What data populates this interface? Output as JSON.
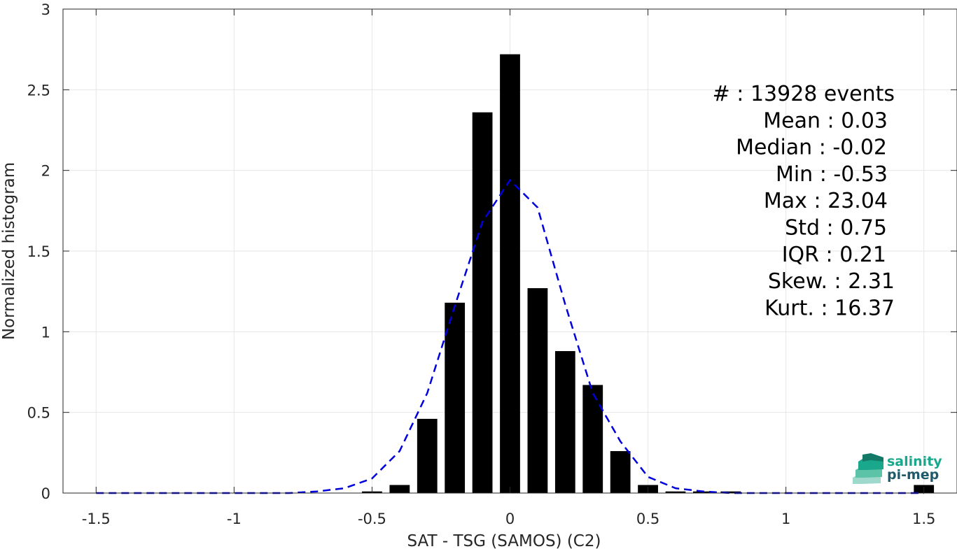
{
  "chart_data": {
    "type": "bar",
    "xlabel": "SAT - TSG (SAMOS) (C2)",
    "ylabel": "Normalized histogram",
    "xlim": [
      -1.62,
      1.62
    ],
    "ylim": [
      0,
      3
    ],
    "xticks": [
      -1.5,
      -1,
      -0.5,
      0,
      0.5,
      1,
      1.5
    ],
    "xtick_labels": [
      "-1.5",
      "-1",
      "-0.5",
      "0",
      "0.5",
      "1",
      "1.5"
    ],
    "yticks": [
      0,
      0.5,
      1,
      1.5,
      2,
      2.5,
      3
    ],
    "ytick_labels": [
      "0",
      "0.5",
      "1",
      "1.5",
      "2",
      "2.5",
      "3"
    ],
    "grid": true,
    "bar_color": "#000000",
    "bars": {
      "x": [
        -0.5,
        -0.4,
        -0.3,
        -0.2,
        -0.1,
        0.0,
        0.1,
        0.2,
        0.3,
        0.4,
        0.5,
        0.6,
        0.7,
        0.8,
        1.5
      ],
      "values": [
        0.01,
        0.05,
        0.46,
        1.18,
        2.36,
        2.72,
        1.27,
        0.88,
        0.67,
        0.26,
        0.05,
        0.01,
        0.01,
        0.01,
        0.05
      ]
    },
    "fit_curve": {
      "color": "#0000dd",
      "style": "dashed",
      "x": [
        -1.5,
        -1.4,
        -1.3,
        -1.2,
        -1.1,
        -1.0,
        -0.9,
        -0.8,
        -0.7,
        -0.6,
        -0.5,
        -0.4,
        -0.3,
        -0.2,
        -0.1,
        0.0,
        0.1,
        0.2,
        0.3,
        0.4,
        0.5,
        0.6,
        0.7,
        0.8,
        0.9,
        1.0,
        1.1,
        1.2,
        1.3,
        1.4,
        1.5
      ],
      "y": [
        0,
        0,
        0,
        0,
        0,
        0,
        0,
        0,
        0.01,
        0.03,
        0.09,
        0.26,
        0.62,
        1.16,
        1.68,
        1.94,
        1.77,
        1.17,
        0.62,
        0.32,
        0.1,
        0.03,
        0.01,
        0,
        0,
        0,
        0,
        0,
        0,
        0,
        0
      ]
    },
    "stats": [
      {
        "label": "#  : 13928 events"
      },
      {
        "label": "Mean : 0.03"
      },
      {
        "label": "Median : -0.02"
      },
      {
        "label": "Min : -0.53"
      },
      {
        "label": "Max : 23.04"
      },
      {
        "label": "Std : 0.75"
      },
      {
        "label": "IQR : 0.21"
      },
      {
        "label": "Skew. : 2.31"
      },
      {
        "label": "Kurt. : 16.37"
      }
    ]
  },
  "logo": {
    "line1": "salinity",
    "line2": "pi-mep",
    "color1": "#1aa88c",
    "color2": "#1f5a6a"
  }
}
